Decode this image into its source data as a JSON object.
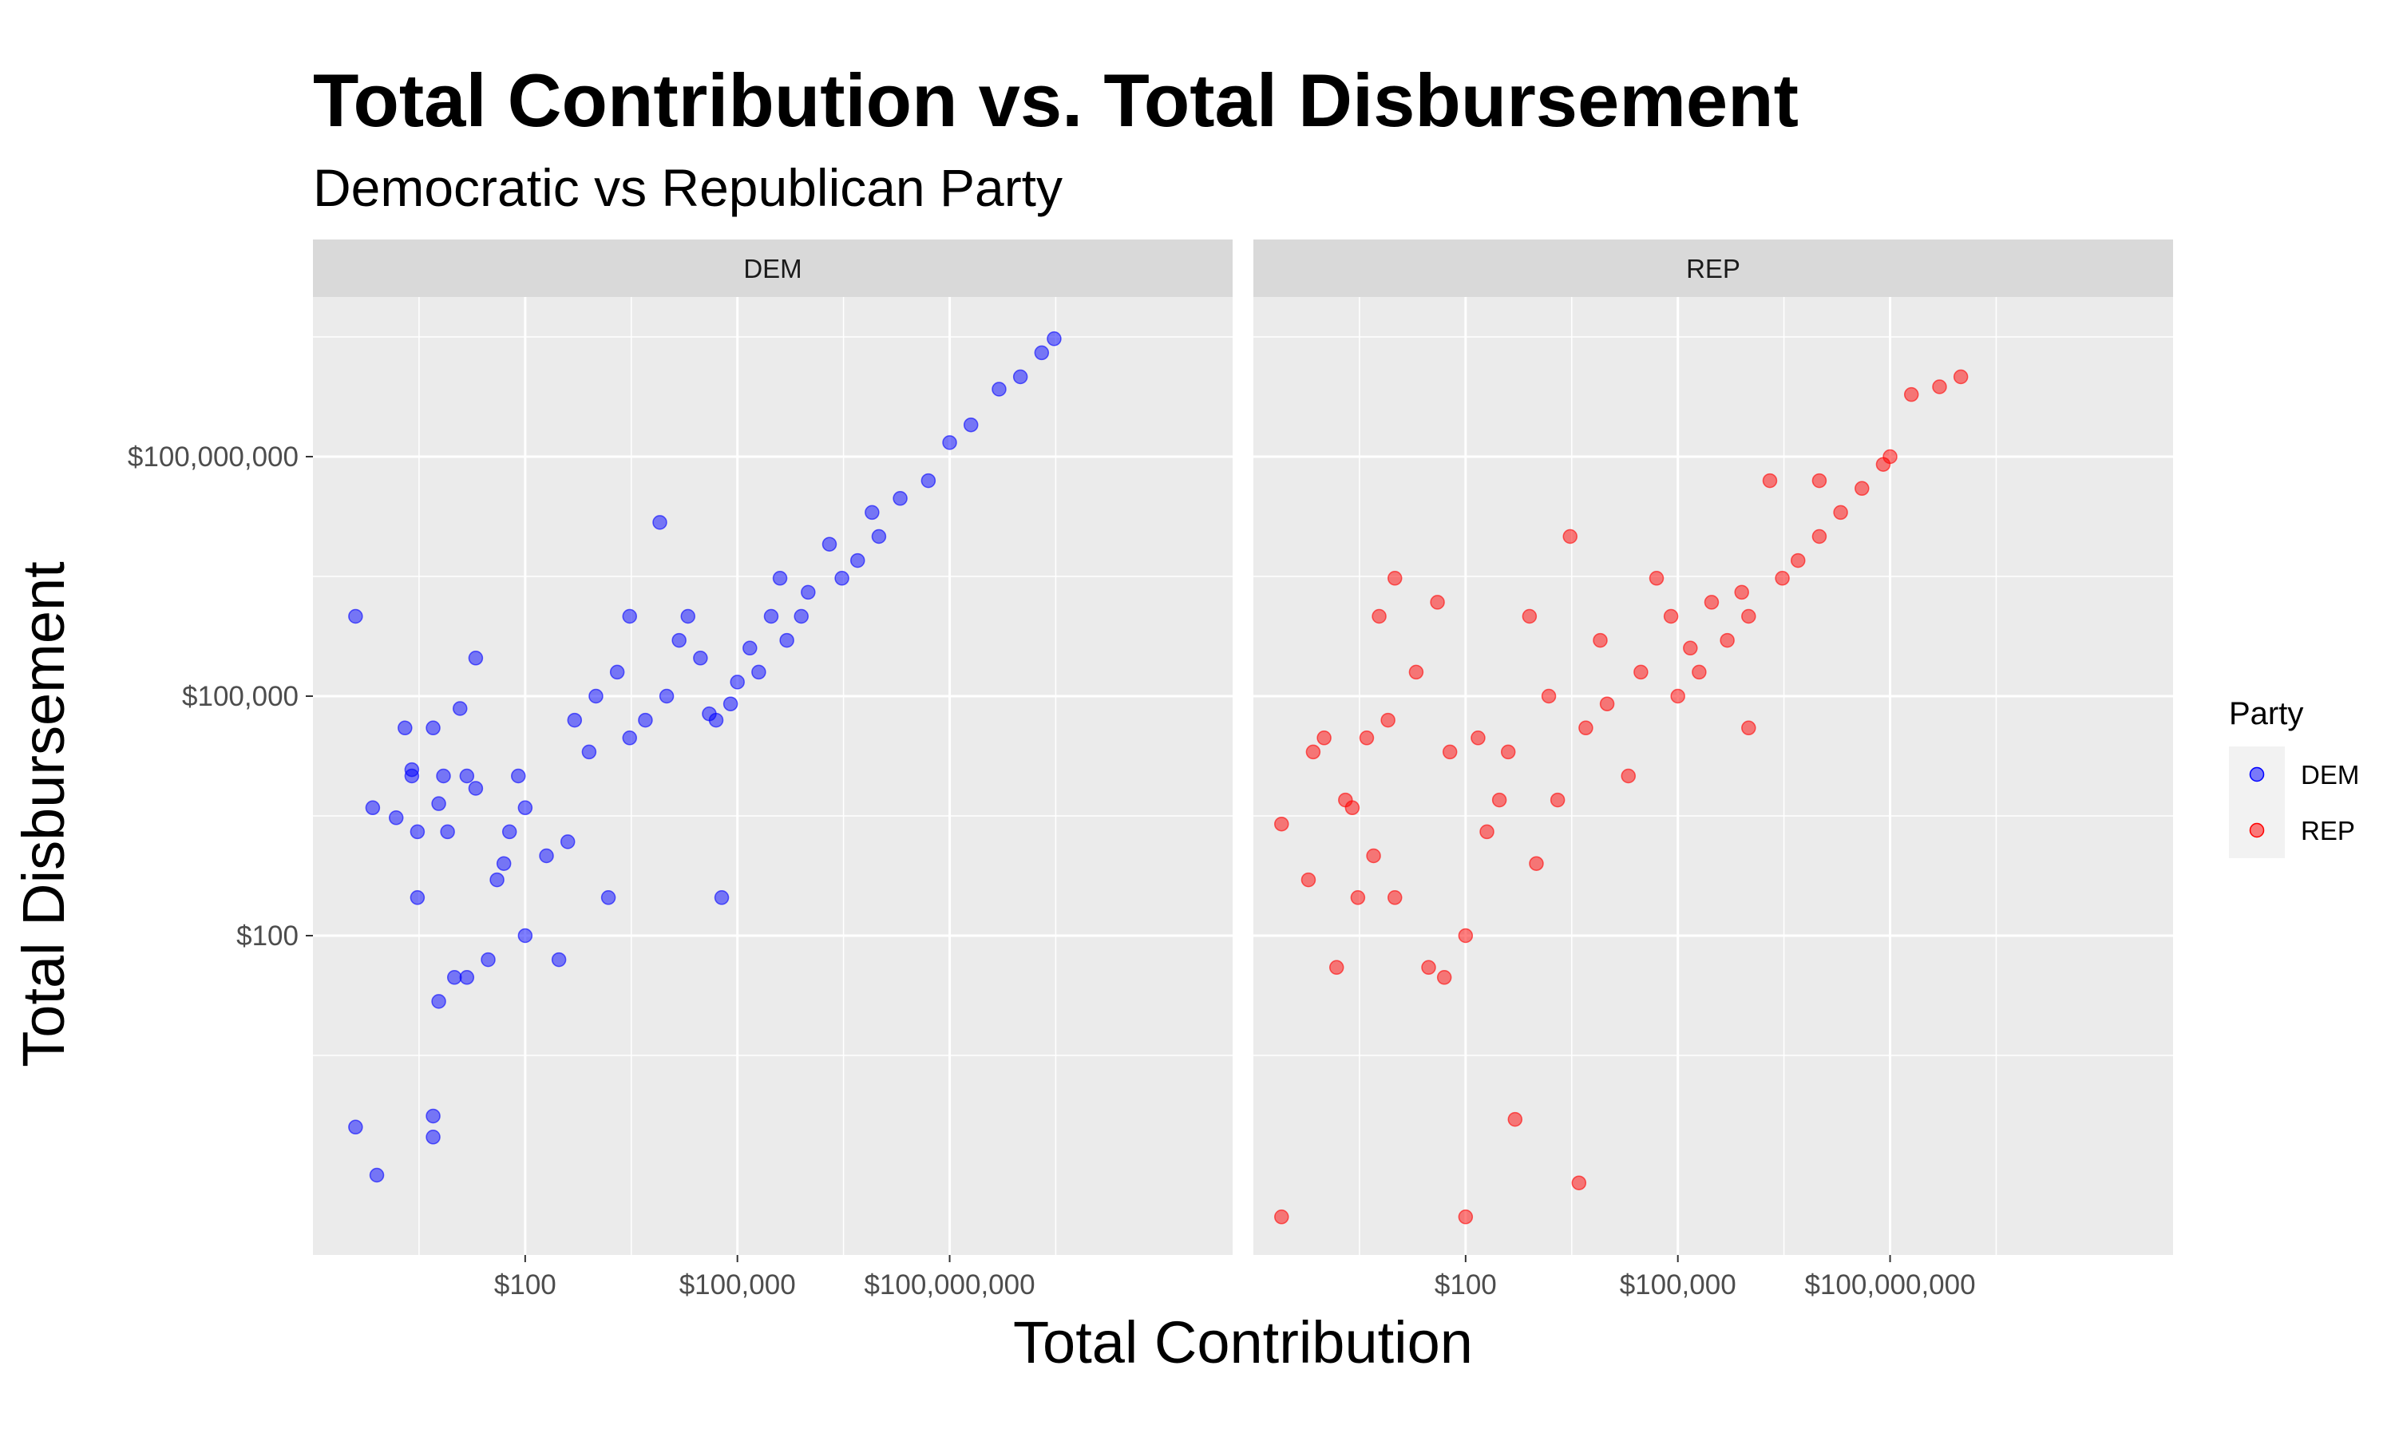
{
  "title": "Total Contribution vs. Total Disbursement",
  "subtitle": "Democratic vs Republican Party",
  "colors": {
    "DEM": "#0000ff",
    "REP": "#ff0000",
    "panel_bg": "#ebebeb",
    "strip_bg": "#d9d9d9",
    "grid": "#ffffff"
  },
  "legend": {
    "title": "Party",
    "items": [
      {
        "label": "DEM",
        "color_key": "DEM"
      },
      {
        "label": "REP",
        "color_key": "REP"
      }
    ]
  },
  "chart_data": {
    "type": "scatter",
    "facet_by": "Party",
    "facets": [
      "DEM",
      "REP"
    ],
    "xlabel": "Total Contribution",
    "ylabel": "Total Disbursement",
    "x_scale": "log10",
    "y_scale": "log10",
    "xlim": [
      0.1,
      1000000000000
    ],
    "ylim": [
      0.01,
      10000000000
    ],
    "x_major_ticks": [
      100,
      100000,
      100000000
    ],
    "x_tick_labels": [
      "$100",
      "$100,000",
      "$100,000,000"
    ],
    "y_major_ticks": [
      100,
      100000,
      100000000
    ],
    "y_tick_labels": [
      "$100",
      "$100,000",
      "$100,000,000"
    ],
    "grid": true,
    "legend_position": "right",
    "point_alpha": 0.5,
    "series": [
      {
        "name": "DEM",
        "points": [
          [
            0.4,
            1000000
          ],
          [
            0.4,
            0.4
          ],
          [
            0.8,
            0.1
          ],
          [
            0.7,
            4000
          ],
          [
            1.5,
            3000
          ],
          [
            2,
            40000
          ],
          [
            2.5,
            10000
          ],
          [
            2.5,
            12000
          ],
          [
            3,
            2000
          ],
          [
            3,
            300
          ],
          [
            5,
            40000
          ],
          [
            5,
            0.3
          ],
          [
            5,
            0.55
          ],
          [
            6,
            15
          ],
          [
            6,
            4500
          ],
          [
            7,
            10000
          ],
          [
            8,
            2000
          ],
          [
            10,
            30
          ],
          [
            12,
            70000
          ],
          [
            15,
            10000
          ],
          [
            15,
            30
          ],
          [
            20,
            300000
          ],
          [
            20,
            7000
          ],
          [
            30,
            50
          ],
          [
            40,
            500
          ],
          [
            50,
            800
          ],
          [
            60,
            2000
          ],
          [
            80,
            10000
          ],
          [
            100,
            100
          ],
          [
            100,
            4000
          ],
          [
            200,
            1000
          ],
          [
            300,
            50
          ],
          [
            400,
            1500
          ],
          [
            500,
            50000
          ],
          [
            800,
            20000
          ],
          [
            1000,
            100000
          ],
          [
            1500,
            300
          ],
          [
            2000,
            200000
          ],
          [
            3000,
            30000
          ],
          [
            3000,
            1000000
          ],
          [
            5000,
            50000
          ],
          [
            8000,
            15000000
          ],
          [
            10000,
            100000
          ],
          [
            15000,
            500000
          ],
          [
            20000,
            1000000
          ],
          [
            30000,
            300000
          ],
          [
            40000,
            60000
          ],
          [
            50000,
            50000
          ],
          [
            60000,
            300
          ],
          [
            80000,
            80000
          ],
          [
            100000,
            150000
          ],
          [
            150000,
            400000
          ],
          [
            200000,
            200000
          ],
          [
            300000,
            1000000
          ],
          [
            400000,
            3000000
          ],
          [
            500000,
            500000
          ],
          [
            800000,
            1000000
          ],
          [
            1000000,
            2000000
          ],
          [
            2000000,
            8000000
          ],
          [
            3000000,
            3000000
          ],
          [
            5000000,
            5000000
          ],
          [
            8000000,
            20000000
          ],
          [
            10000000,
            10000000
          ],
          [
            20000000,
            30000000
          ],
          [
            50000000,
            50000000
          ],
          [
            100000000,
            150000000
          ],
          [
            200000000,
            250000000
          ],
          [
            500000000,
            700000000
          ],
          [
            1000000000,
            1000000000
          ],
          [
            2000000000,
            2000000000
          ],
          [
            3000000000,
            3000000000
          ]
        ]
      },
      {
        "name": "REP",
        "points": [
          [
            0.25,
            2500
          ],
          [
            0.25,
            0.03
          ],
          [
            0.6,
            500
          ],
          [
            0.7,
            20000
          ],
          [
            1,
            30000
          ],
          [
            1.5,
            40
          ],
          [
            2,
            5000
          ],
          [
            2.5,
            4000
          ],
          [
            3,
            300
          ],
          [
            4,
            30000
          ],
          [
            5,
            1000
          ],
          [
            6,
            1000000
          ],
          [
            8,
            50000
          ],
          [
            10,
            3000000
          ],
          [
            10,
            300
          ],
          [
            20,
            200000
          ],
          [
            30,
            40
          ],
          [
            40,
            1500000
          ],
          [
            50,
            30
          ],
          [
            60,
            20000
          ],
          [
            100,
            100
          ],
          [
            100,
            0.03
          ],
          [
            150,
            30000
          ],
          [
            200,
            2000
          ],
          [
            300,
            5000
          ],
          [
            400,
            20000
          ],
          [
            500,
            0.5
          ],
          [
            800,
            1000000
          ],
          [
            1000,
            800
          ],
          [
            1500,
            100000
          ],
          [
            2000,
            5000
          ],
          [
            3000,
            10000000
          ],
          [
            4000,
            0.08
          ],
          [
            5000,
            40000
          ],
          [
            8000,
            500000
          ],
          [
            10000,
            80000
          ],
          [
            20000,
            10000
          ],
          [
            30000,
            200000
          ],
          [
            50000,
            3000000
          ],
          [
            80000,
            1000000
          ],
          [
            100000,
            100000
          ],
          [
            150000,
            400000
          ],
          [
            200000,
            200000
          ],
          [
            300000,
            1500000
          ],
          [
            500000,
            500000
          ],
          [
            800000,
            2000000
          ],
          [
            1000000,
            40000
          ],
          [
            1000000,
            1000000
          ],
          [
            2000000,
            50000000
          ],
          [
            3000000,
            3000000
          ],
          [
            5000000,
            5000000
          ],
          [
            10000000,
            10000000
          ],
          [
            10000000,
            50000000
          ],
          [
            20000000,
            20000000
          ],
          [
            40000000,
            40000000
          ],
          [
            80000000,
            80000000
          ],
          [
            100000000,
            100000000
          ],
          [
            200000000,
            600000000
          ],
          [
            500000000,
            750000000
          ],
          [
            1000000000,
            1000000000
          ]
        ]
      }
    ]
  }
}
